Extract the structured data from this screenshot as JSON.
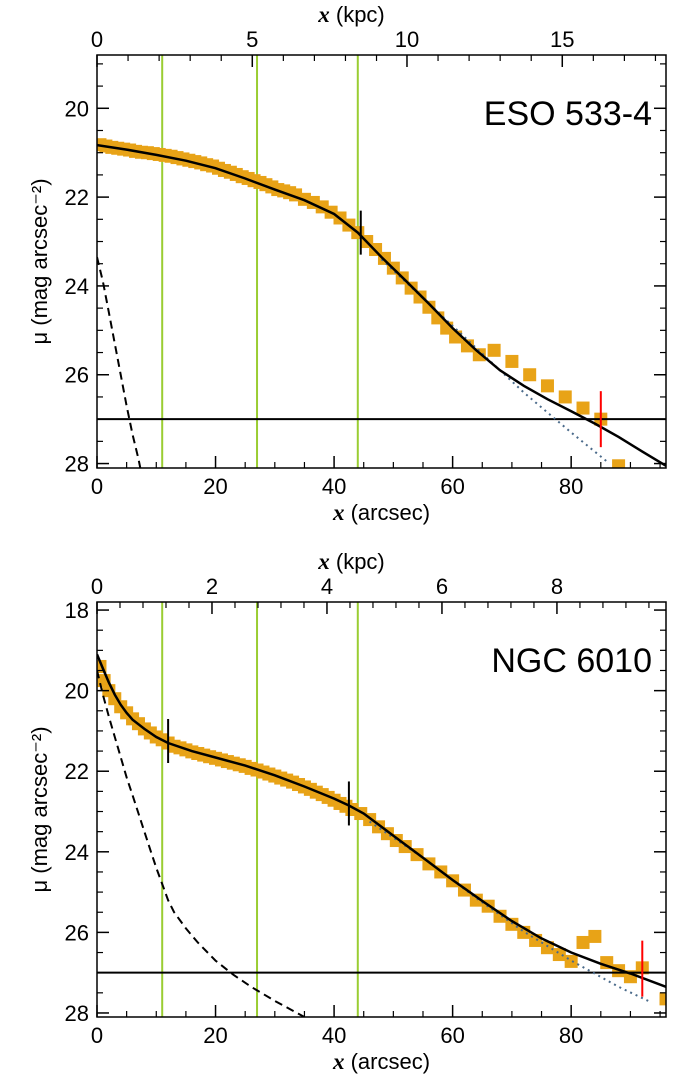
{
  "chart_data": [
    {
      "type": "scatter",
      "galaxy_label": "ESO 533-4",
      "xlabel": {
        "var": "x",
        "unit": "(arcsec)"
      },
      "x2label": {
        "var": "x",
        "unit": "(kpc)"
      },
      "ylabel": "μ (mag arcsec⁻²)",
      "xlim": [
        0,
        96
      ],
      "ylim": [
        28.1,
        18.8
      ],
      "x_ticks": [
        0,
        20,
        40,
        60,
        80
      ],
      "x2_ticks": [
        {
          "label": "0",
          "at": 0
        },
        {
          "label": "5",
          "at": 26.2
        },
        {
          "label": "10",
          "at": 52.3
        },
        {
          "label": "15",
          "at": 78.5
        }
      ],
      "y_ticks": [
        20,
        22,
        24,
        26,
        28
      ],
      "green_lines_x": [
        11,
        27,
        44
      ],
      "horizontal_line_y": 27.0,
      "data_points": [
        [
          0.5,
          20.82
        ],
        [
          1.5,
          20.85
        ],
        [
          2.5,
          20.88
        ],
        [
          3.5,
          20.9
        ],
        [
          4.5,
          20.92
        ],
        [
          5.5,
          20.94
        ],
        [
          6.5,
          20.97
        ],
        [
          7.5,
          20.99
        ],
        [
          8.5,
          21.0
        ],
        [
          9.5,
          21.02
        ],
        [
          10.5,
          21.04
        ],
        [
          11.5,
          21.06
        ],
        [
          12.5,
          21.08
        ],
        [
          13.5,
          21.11
        ],
        [
          14.5,
          21.14
        ],
        [
          15.5,
          21.17
        ],
        [
          16.5,
          21.2
        ],
        [
          17.5,
          21.23
        ],
        [
          18.5,
          21.27
        ],
        [
          19.5,
          21.3
        ],
        [
          20.5,
          21.35
        ],
        [
          21.5,
          21.4
        ],
        [
          22.5,
          21.44
        ],
        [
          23.5,
          21.49
        ],
        [
          24.5,
          21.54
        ],
        [
          25.5,
          21.58
        ],
        [
          26.5,
          21.63
        ],
        [
          27.5,
          21.67
        ],
        [
          28.5,
          21.72
        ],
        [
          29.5,
          21.77
        ],
        [
          30.5,
          21.83
        ],
        [
          31.5,
          21.86
        ],
        [
          32.5,
          21.9
        ],
        [
          33.5,
          21.95
        ],
        [
          35,
          22.05
        ],
        [
          36.5,
          22.12
        ],
        [
          38,
          22.22
        ],
        [
          39.5,
          22.34
        ],
        [
          41,
          22.47
        ],
        [
          42.5,
          22.63
        ],
        [
          44,
          22.8
        ],
        [
          45.5,
          23.0
        ],
        [
          47,
          23.18
        ],
        [
          48.5,
          23.38
        ],
        [
          50,
          23.6
        ],
        [
          51.5,
          23.82
        ],
        [
          53,
          24.05
        ],
        [
          54.5,
          24.25
        ],
        [
          56,
          24.48
        ],
        [
          57.5,
          24.72
        ],
        [
          59,
          24.95
        ],
        [
          60.5,
          25.15
        ],
        [
          62.5,
          25.35
        ],
        [
          64.5,
          25.55
        ],
        [
          67,
          25.45
        ],
        [
          70,
          25.7
        ],
        [
          73,
          26.0
        ],
        [
          76,
          26.25
        ],
        [
          79,
          26.5
        ],
        [
          82,
          26.75
        ],
        [
          85,
          27.0
        ],
        [
          88,
          28.05
        ]
      ],
      "fit_curve": [
        [
          0,
          20.83
        ],
        [
          5,
          20.93
        ],
        [
          10,
          21.05
        ],
        [
          15,
          21.18
        ],
        [
          20,
          21.35
        ],
        [
          25,
          21.58
        ],
        [
          30,
          21.83
        ],
        [
          35,
          22.07
        ],
        [
          40,
          22.38
        ],
        [
          44,
          22.8
        ],
        [
          48,
          23.35
        ],
        [
          52,
          23.87
        ],
        [
          56,
          24.4
        ],
        [
          60,
          24.95
        ],
        [
          64,
          25.45
        ],
        [
          68,
          25.9
        ],
        [
          72,
          26.25
        ],
        [
          76,
          26.55
        ],
        [
          80,
          26.82
        ],
        [
          84,
          27.1
        ],
        [
          88,
          27.4
        ],
        [
          92,
          27.73
        ],
        [
          96,
          28.05
        ]
      ],
      "dotted_curve": [
        [
          48,
          23.4
        ],
        [
          56,
          24.4
        ],
        [
          64,
          25.4
        ],
        [
          72,
          26.4
        ],
        [
          80,
          27.3
        ],
        [
          86,
          27.95
        ]
      ],
      "dashed_curve": [
        [
          0,
          23.35
        ],
        [
          1,
          23.9
        ],
        [
          2,
          24.6
        ],
        [
          3,
          25.3
        ],
        [
          4,
          26.0
        ],
        [
          5,
          26.7
        ],
        [
          6,
          27.35
        ],
        [
          7,
          27.9
        ],
        [
          7.3,
          28.1
        ]
      ],
      "black_marker": {
        "x": 44.5,
        "y": 22.8
      },
      "red_marker": {
        "x": 85,
        "y": 27.0
      }
    },
    {
      "type": "scatter",
      "galaxy_label": "NGC 6010",
      "xlabel": {
        "var": "x",
        "unit": "(arcsec)"
      },
      "x2label": {
        "var": "x",
        "unit": "(kpc)"
      },
      "ylabel": "μ (mag arcsec⁻²)",
      "xlim": [
        0,
        96
      ],
      "ylim": [
        28.1,
        17.8
      ],
      "x_ticks": [
        0,
        20,
        40,
        60,
        80
      ],
      "x2_ticks": [
        {
          "label": "0",
          "at": 0
        },
        {
          "label": "2",
          "at": 19.4
        },
        {
          "label": "4",
          "at": 38.8
        },
        {
          "label": "6",
          "at": 58.2
        },
        {
          "label": "8",
          "at": 77.6
        }
      ],
      "y_ticks": [
        18,
        20,
        22,
        24,
        26,
        28
      ],
      "green_lines_x": [
        11,
        27,
        44
      ],
      "horizontal_line_y": 27.0,
      "data_points": [
        [
          0.5,
          19.4
        ],
        [
          1.2,
          19.75
        ],
        [
          2,
          20.0
        ],
        [
          3,
          20.2
        ],
        [
          4,
          20.4
        ],
        [
          5,
          20.55
        ],
        [
          6,
          20.7
        ],
        [
          7,
          20.82
        ],
        [
          8,
          20.95
        ],
        [
          9,
          21.05
        ],
        [
          10,
          21.15
        ],
        [
          11,
          21.22
        ],
        [
          12,
          21.3
        ],
        [
          13,
          21.38
        ],
        [
          14,
          21.42
        ],
        [
          15,
          21.47
        ],
        [
          16,
          21.52
        ],
        [
          17,
          21.56
        ],
        [
          18,
          21.6
        ],
        [
          19,
          21.64
        ],
        [
          20,
          21.68
        ],
        [
          21,
          21.72
        ],
        [
          22,
          21.76
        ],
        [
          23,
          21.8
        ],
        [
          24,
          21.84
        ],
        [
          25,
          21.88
        ],
        [
          26,
          21.93
        ],
        [
          27,
          21.97
        ],
        [
          28,
          22.02
        ],
        [
          29,
          22.07
        ],
        [
          30,
          22.12
        ],
        [
          31,
          22.17
        ],
        [
          32,
          22.22
        ],
        [
          33,
          22.27
        ],
        [
          34,
          22.33
        ],
        [
          35,
          22.39
        ],
        [
          36,
          22.45
        ],
        [
          37,
          22.52
        ],
        [
          38,
          22.58
        ],
        [
          39,
          22.65
        ],
        [
          40,
          22.72
        ],
        [
          41,
          22.8
        ],
        [
          42,
          22.87
        ],
        [
          43,
          22.95
        ],
        [
          44.5,
          23.05
        ],
        [
          46,
          23.2
        ],
        [
          47.5,
          23.38
        ],
        [
          49,
          23.55
        ],
        [
          50.5,
          23.72
        ],
        [
          52,
          23.87
        ],
        [
          54,
          24.07
        ],
        [
          56,
          24.3
        ],
        [
          58,
          24.5
        ],
        [
          60,
          24.72
        ],
        [
          62,
          24.95
        ],
        [
          64,
          25.2
        ],
        [
          66,
          25.35
        ],
        [
          68,
          25.6
        ],
        [
          70,
          25.8
        ],
        [
          72,
          26.0
        ],
        [
          74,
          26.2
        ],
        [
          76,
          26.38
        ],
        [
          78,
          26.55
        ],
        [
          80,
          26.72
        ],
        [
          82,
          26.25
        ],
        [
          84,
          26.1
        ],
        [
          86,
          26.75
        ],
        [
          88,
          26.95
        ],
        [
          90,
          27.1
        ],
        [
          92,
          26.88
        ],
        [
          96,
          27.65
        ]
      ],
      "fit_curve": [
        [
          0,
          19.1
        ],
        [
          1,
          19.45
        ],
        [
          2,
          19.8
        ],
        [
          3,
          20.1
        ],
        [
          4,
          20.35
        ],
        [
          5,
          20.55
        ],
        [
          6,
          20.72
        ],
        [
          8,
          20.95
        ],
        [
          10,
          21.15
        ],
        [
          12,
          21.3
        ],
        [
          16,
          21.5
        ],
        [
          20,
          21.66
        ],
        [
          25,
          21.86
        ],
        [
          30,
          22.1
        ],
        [
          35,
          22.38
        ],
        [
          40,
          22.68
        ],
        [
          42.5,
          22.85
        ],
        [
          45,
          23.05
        ],
        [
          50,
          23.6
        ],
        [
          55,
          24.15
        ],
        [
          60,
          24.7
        ],
        [
          65,
          25.22
        ],
        [
          70,
          25.72
        ],
        [
          75,
          26.15
        ],
        [
          80,
          26.5
        ],
        [
          85,
          26.78
        ],
        [
          90,
          27.02
        ],
        [
          96,
          27.35
        ]
      ],
      "dotted_curve": [
        [
          46,
          23.25
        ],
        [
          55,
          24.15
        ],
        [
          64,
          25.15
        ],
        [
          72,
          25.98
        ],
        [
          80,
          26.7
        ],
        [
          88,
          27.35
        ],
        [
          93,
          27.7
        ]
      ],
      "dashed_curve": [
        [
          0,
          19.5
        ],
        [
          1,
          20.1
        ],
        [
          2,
          20.65
        ],
        [
          3,
          21.15
        ],
        [
          4,
          21.65
        ],
        [
          5,
          22.15
        ],
        [
          6,
          22.6
        ],
        [
          7,
          23.05
        ],
        [
          8,
          23.5
        ],
        [
          9,
          23.95
        ],
        [
          10,
          24.4
        ],
        [
          11,
          24.8
        ],
        [
          12,
          25.2
        ],
        [
          13,
          25.5
        ],
        [
          15,
          25.9
        ],
        [
          17,
          26.25
        ],
        [
          20,
          26.7
        ],
        [
          23,
          27.05
        ],
        [
          26,
          27.35
        ],
        [
          30,
          27.7
        ],
        [
          35,
          28.1
        ]
      ],
      "black_markers": [
        {
          "x": 12,
          "y": 21.25
        },
        {
          "x": 42.5,
          "y": 22.8
        }
      ],
      "red_marker": {
        "x": 92,
        "y": 26.9
      }
    }
  ]
}
